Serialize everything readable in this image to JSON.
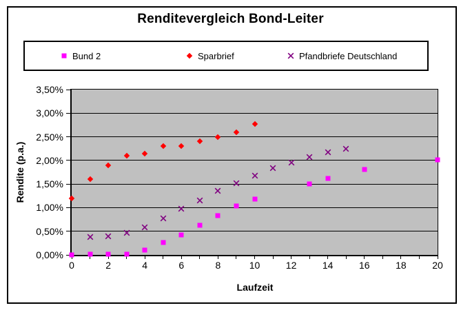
{
  "title": "Renditevergleich Bond-Leiter",
  "axes": {
    "x_label": "Laufzeit",
    "y_label": "Rendite (p.a.)",
    "y_tick_labels": [
      "3,50%",
      "3,00%",
      "2,50%",
      "2,00%",
      "1,50%",
      "1,00%",
      "0,50%",
      "0,00%"
    ],
    "x_tick_labels": [
      "0",
      "2",
      "4",
      "6",
      "8",
      "10",
      "12",
      "14",
      "16",
      "18",
      "20"
    ]
  },
  "colors": {
    "plot_background": "#C0C0C0",
    "gridline": "#000000",
    "border": "#000000",
    "bund2": "#FF00FF",
    "sparbrief": "#FF0000",
    "pfandbriefe": "#800080"
  },
  "chart_data": {
    "type": "scatter",
    "title": "Renditevergleich Bond-Leiter",
    "xlabel": "Laufzeit",
    "ylabel": "Rendite (p.a.)",
    "xlim": [
      0,
      20
    ],
    "ylim": [
      0,
      3.5
    ],
    "y_tick_interval": 0.5,
    "x_minor_tick_interval": 1,
    "x_label_interval": 2,
    "grid": "horizontal",
    "legend_position": "top",
    "y_unit": "percent p.a.",
    "series": [
      {
        "name": "Bund 2",
        "marker": "square",
        "color": "#FF00FF",
        "points": [
          [
            0,
            0.0
          ],
          [
            1,
            0.01
          ],
          [
            2,
            0.01
          ],
          [
            3,
            0.02
          ],
          [
            4,
            0.1
          ],
          [
            5,
            0.26
          ],
          [
            6,
            0.43
          ],
          [
            7,
            0.63
          ],
          [
            8,
            0.83
          ],
          [
            9,
            1.03
          ],
          [
            10,
            1.18
          ],
          [
            13,
            1.5
          ],
          [
            14,
            1.62
          ],
          [
            16,
            1.81
          ],
          [
            20,
            2.01
          ]
        ]
      },
      {
        "name": "Sparbrief",
        "marker": "diamond",
        "color": "#FF0000",
        "points": [
          [
            0,
            1.2
          ],
          [
            1,
            1.6
          ],
          [
            2,
            1.9
          ],
          [
            3,
            2.1
          ],
          [
            4,
            2.15
          ],
          [
            5,
            2.3
          ],
          [
            6,
            2.3
          ],
          [
            7,
            2.4
          ],
          [
            8,
            2.5
          ],
          [
            9,
            2.6
          ],
          [
            10,
            2.77
          ]
        ]
      },
      {
        "name": "Pfandbriefe Deutschland",
        "marker": "x",
        "color": "#800080",
        "points": [
          [
            1,
            0.38
          ],
          [
            2,
            0.4
          ],
          [
            3,
            0.46
          ],
          [
            4,
            0.59
          ],
          [
            5,
            0.77
          ],
          [
            6,
            0.97
          ],
          [
            7,
            1.15
          ],
          [
            8,
            1.36
          ],
          [
            9,
            1.52
          ],
          [
            10,
            1.68
          ],
          [
            11,
            1.84
          ],
          [
            12,
            1.96
          ],
          [
            13,
            2.07
          ],
          [
            14,
            2.17
          ],
          [
            15,
            2.25
          ]
        ]
      }
    ]
  }
}
